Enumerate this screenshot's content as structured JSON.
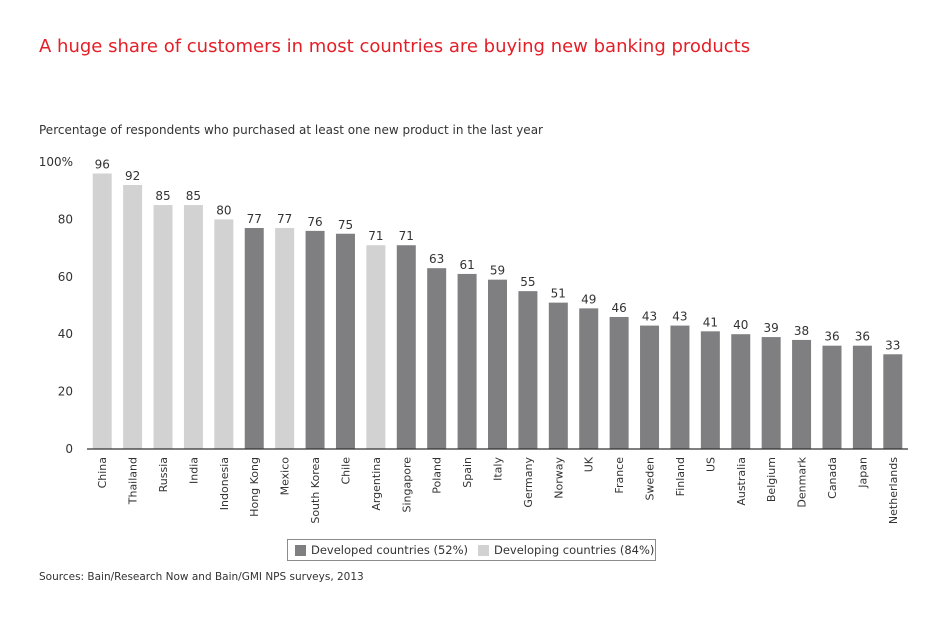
{
  "title": "A huge share of customers in most countries are buying new banking products",
  "subtitle": "Percentage of respondents who purchased at least one new product in the last year",
  "source": "Sources: Bain/Research Now and Bain/GMI NPS surveys, 2013",
  "colors": {
    "developed": "#7f7f81",
    "developing": "#d2d2d3",
    "title": "#e41e26",
    "axis": "#333333"
  },
  "legend": [
    {
      "label": "Developed countries (52%)",
      "group": "developed"
    },
    {
      "label": "Developing countries (84%)",
      "group": "developing"
    }
  ],
  "chart_data": {
    "type": "bar",
    "title": "A huge share of customers in most countries are buying new banking products",
    "ylabel": "Percentage of respondents who purchased at least one new product in the last year",
    "ylim": [
      0,
      100
    ],
    "yticks": [
      "0",
      "20",
      "40",
      "60",
      "80",
      "100%"
    ],
    "yticks_values": [
      0,
      20,
      40,
      60,
      80,
      100
    ],
    "grid": false,
    "legend_position": "bottom",
    "categories": [
      "China",
      "Thailand",
      "Russia",
      "India",
      "Indonesia",
      "Hong Kong",
      "Mexico",
      "South Korea",
      "Chile",
      "Argentina",
      "Singapore",
      "Poland",
      "Spain",
      "Italy",
      "Germany",
      "Norway",
      "UK",
      "France",
      "Sweden",
      "Finland",
      "US",
      "Australia",
      "Belgium",
      "Denmark",
      "Canada",
      "Japan",
      "Netherlands"
    ],
    "values": [
      96,
      92,
      85,
      85,
      80,
      77,
      77,
      76,
      75,
      71,
      71,
      63,
      61,
      59,
      55,
      51,
      49,
      46,
      43,
      43,
      41,
      40,
      39,
      38,
      36,
      36,
      33
    ],
    "groups": [
      "developing",
      "developing",
      "developing",
      "developing",
      "developing",
      "developed",
      "developing",
      "developed",
      "developed",
      "developing",
      "developed",
      "developed",
      "developed",
      "developed",
      "developed",
      "developed",
      "developed",
      "developed",
      "developed",
      "developed",
      "developed",
      "developed",
      "developed",
      "developed",
      "developed",
      "developed",
      "developed"
    ]
  }
}
